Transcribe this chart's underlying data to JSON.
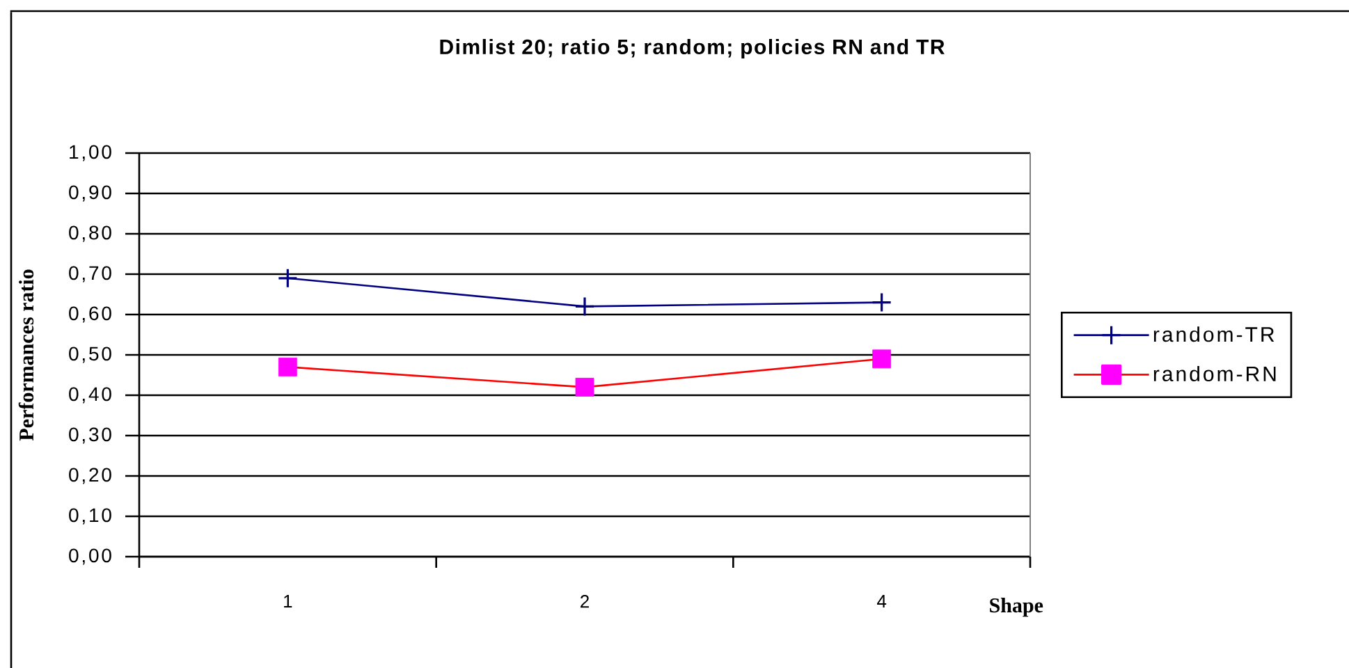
{
  "chart_data": {
    "type": "line",
    "title": "Dimlist 20; ratio 5; random; policies RN and TR",
    "xlabel": "Shape",
    "ylabel": "Performances ratio",
    "categories": [
      "1",
      "2",
      "4"
    ],
    "series": [
      {
        "name": "random-TR",
        "color": "#000080",
        "marker": "cross",
        "values": [
          0.69,
          0.62,
          0.63
        ]
      },
      {
        "name": "random-RN",
        "color": "#ff0000",
        "colors": [
          "#ff00ff",
          "#ff00ff",
          "#ff00ff"
        ],
        "marker": "square",
        "values": [
          0.47,
          0.42,
          0.49
        ]
      }
    ],
    "ylim": [
      0,
      1
    ],
    "yticks": [
      {
        "value": 0,
        "label": "0,00"
      },
      {
        "value": 0.1,
        "label": "0,10"
      },
      {
        "value": 0.2,
        "label": "0,20"
      },
      {
        "value": 0.3,
        "label": "0,30"
      },
      {
        "value": 0.4,
        "label": "0,40"
      },
      {
        "value": 0.5,
        "label": "0,50"
      },
      {
        "value": 0.6,
        "label": "0,60"
      },
      {
        "value": 0.7,
        "label": "0,70"
      },
      {
        "value": 0.8,
        "label": "0,80"
      },
      {
        "value": 0.9,
        "label": "0,90"
      },
      {
        "value": 1,
        "label": "1,00"
      }
    ],
    "grid": "y",
    "legend": "right"
  }
}
